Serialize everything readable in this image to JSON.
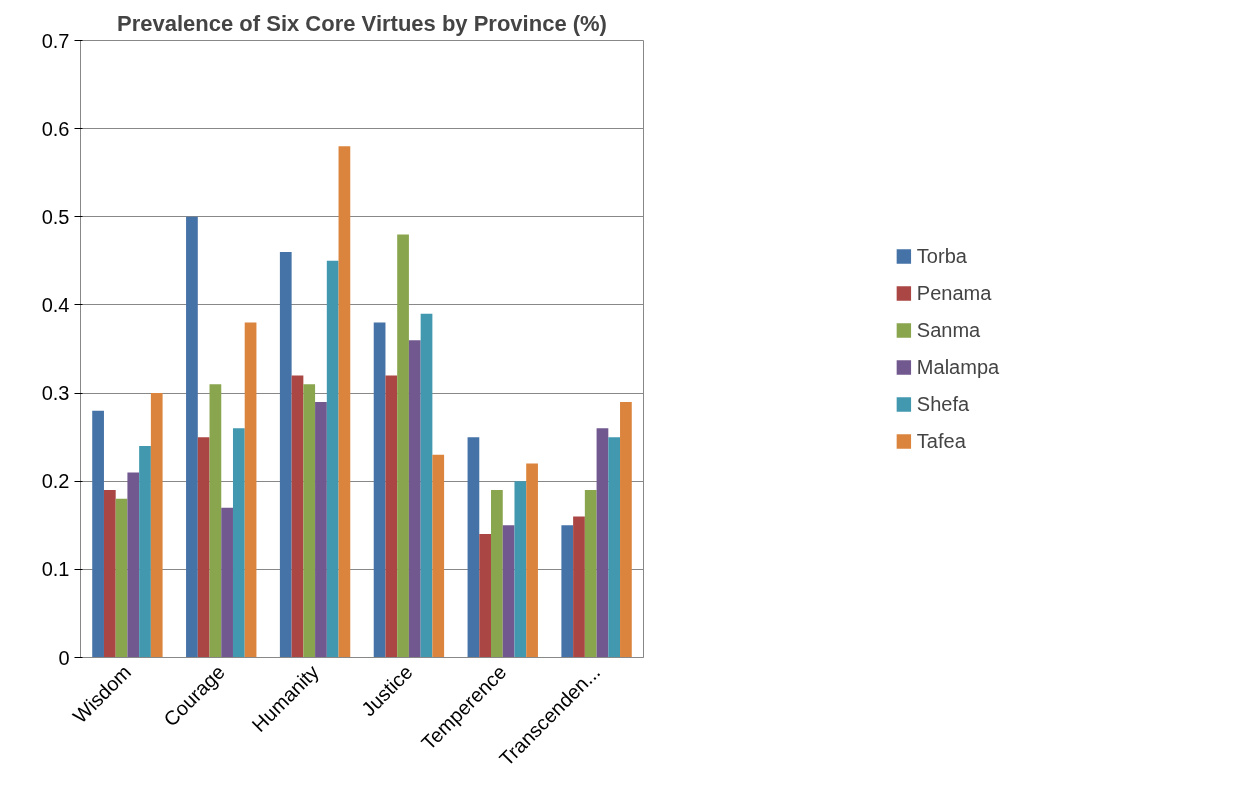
{
  "chart_data": {
    "type": "bar",
    "title": "Prevalence of Six Core Virtues by Province (%)",
    "categories": [
      "Wisdom",
      "Courage",
      "Humanity",
      "Justice",
      "Temperence",
      "Transcenden..."
    ],
    "series": [
      {
        "name": "Torba",
        "color": "#4572a7",
        "values": [
          0.28,
          0.5,
          0.46,
          0.38,
          0.25,
          0.15
        ]
      },
      {
        "name": "Penama",
        "color": "#aa4643",
        "values": [
          0.19,
          0.25,
          0.32,
          0.32,
          0.14,
          0.16
        ]
      },
      {
        "name": "Sanma",
        "color": "#89a54e",
        "values": [
          0.18,
          0.31,
          0.31,
          0.48,
          0.19,
          0.19
        ]
      },
      {
        "name": "Malampa",
        "color": "#71588f",
        "values": [
          0.21,
          0.17,
          0.29,
          0.36,
          0.15,
          0.26
        ]
      },
      {
        "name": "Shefa",
        "color": "#4198af",
        "values": [
          0.24,
          0.26,
          0.45,
          0.39,
          0.2,
          0.25
        ]
      },
      {
        "name": "Tafea",
        "color": "#db843d",
        "values": [
          0.3,
          0.38,
          0.58,
          0.23,
          0.22,
          0.29
        ]
      }
    ],
    "ylim": [
      0,
      0.7
    ],
    "yticks": [
      0,
      0.1,
      0.2,
      0.3,
      0.4,
      0.5,
      0.6,
      0.7
    ],
    "grid": "y",
    "legend": "right"
  }
}
